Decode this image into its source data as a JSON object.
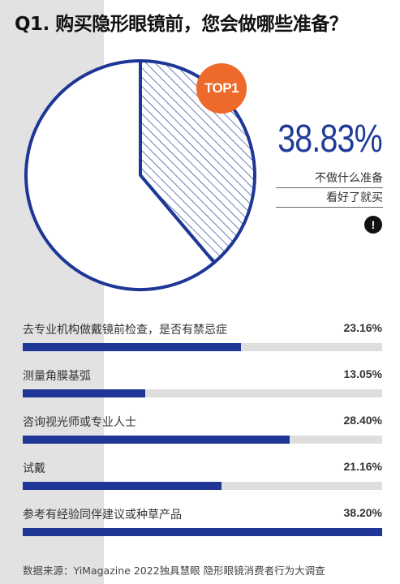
{
  "title": "Q1. 购买隐形眼镜前，您会做哪些准备？",
  "badge": "TOP1",
  "colors": {
    "accent": "#1e3797",
    "badge": "#ee6a2a",
    "track": "#dedede",
    "panel": "#e2e2e2"
  },
  "highlight": {
    "value": "38.83%",
    "note_line1": "不做什么准备",
    "note_line2": "看好了就买",
    "icon": "exclamation-icon"
  },
  "chart_data": [
    {
      "type": "pie",
      "slices": [
        {
          "label": "不做什么准备 看好了就买",
          "value": 38.83,
          "style": "hatched"
        },
        {
          "label": "",
          "value": 61.17,
          "style": "white"
        }
      ]
    },
    {
      "type": "bar",
      "orientation": "horizontal",
      "xlim": [
        0,
        38.2
      ],
      "categories": [
        "去专业机构做戴镜前检查，是否有禁忌症",
        "测量角膜基弧",
        "咨询视光师或专业人士",
        "试戴",
        "参考有经验同伴建议或种草产品"
      ],
      "values": [
        23.16,
        13.05,
        28.4,
        21.16,
        38.2
      ],
      "value_labels": [
        "23.16%",
        "13.05%",
        "28.40%",
        "21.16%",
        "38.20%"
      ]
    }
  ],
  "source": "数据来源：YiMagazine 2022独具慧眼 隐形眼镜消费者行为大调查"
}
